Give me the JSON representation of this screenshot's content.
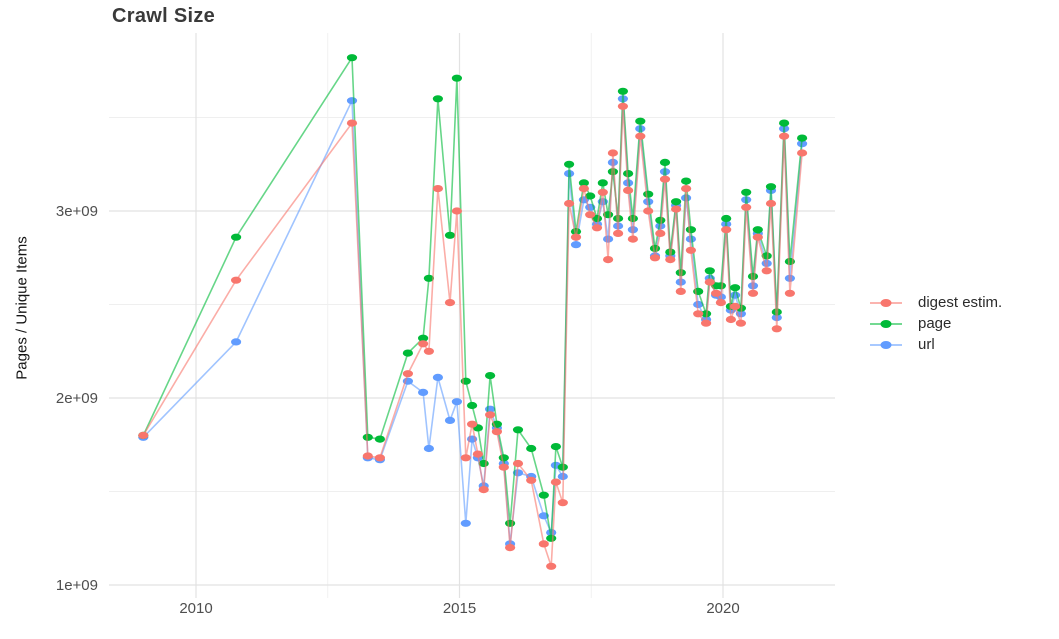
{
  "chart_data": {
    "type": "line",
    "title": "Crawl Size",
    "xlabel": "",
    "ylabel": "Pages / Unique Items",
    "values_unit": "billions (value 2.5 means 2.5e+09 pages / unique items)",
    "xlim": [
      2008.35,
      2022.1
    ],
    "ylim": [
      0.95,
      3.95
    ],
    "grid": {
      "on": true,
      "minor_x": [
        2012.5,
        2017.5
      ],
      "minor_y": [
        1.5,
        2.5,
        3.5
      ]
    },
    "x_ticks": [
      {
        "label": "2010",
        "x": 2010
      },
      {
        "label": "2015",
        "x": 2015
      },
      {
        "label": "2020",
        "x": 2020
      }
    ],
    "y_ticks": [
      {
        "label": "1e+09",
        "v": 1.0
      },
      {
        "label": "2e+09",
        "v": 2.0
      },
      {
        "label": "3e+09",
        "v": 3.0
      }
    ],
    "legend": {
      "position": "right",
      "entries": [
        "digest estim.",
        "page",
        "url"
      ]
    },
    "x": [
      2009.0,
      2010.76,
      2012.96,
      2013.26,
      2013.49,
      2014.02,
      2014.31,
      2014.42,
      2014.59,
      2014.82,
      2014.95,
      2015.12,
      2015.24,
      2015.35,
      2015.46,
      2015.58,
      2015.71,
      2015.84,
      2015.96,
      2016.11,
      2016.36,
      2016.6,
      2016.74,
      2016.83,
      2016.96,
      2017.08,
      2017.21,
      2017.36,
      2017.48,
      2017.61,
      2017.72,
      2017.82,
      2017.91,
      2018.01,
      2018.1,
      2018.2,
      2018.29,
      2018.43,
      2018.58,
      2018.71,
      2018.81,
      2018.9,
      2019.0,
      2019.11,
      2019.2,
      2019.3,
      2019.39,
      2019.53,
      2019.68,
      2019.75,
      2019.87,
      2019.96,
      2020.06,
      2020.15,
      2020.23,
      2020.34,
      2020.44,
      2020.57,
      2020.66,
      2020.83,
      2020.91,
      2021.02,
      2021.16,
      2021.27,
      2021.5
    ],
    "series": [
      {
        "name": "digest estim.",
        "color": "#F8766D",
        "values": [
          1.8,
          2.63,
          3.47,
          1.69,
          1.68,
          2.13,
          2.29,
          2.25,
          3.12,
          2.51,
          3.0,
          1.68,
          1.86,
          1.7,
          1.51,
          1.91,
          1.82,
          1.63,
          1.2,
          1.65,
          1.56,
          1.22,
          1.1,
          1.55,
          1.44,
          3.04,
          2.86,
          3.12,
          2.98,
          2.91,
          3.1,
          2.74,
          3.31,
          2.88,
          3.56,
          3.11,
          2.85,
          3.4,
          3.0,
          2.75,
          2.88,
          3.17,
          2.74,
          3.01,
          2.57,
          3.12,
          2.79,
          2.45,
          2.4,
          2.62,
          2.56,
          2.51,
          2.9,
          2.42,
          2.49,
          2.4,
          3.02,
          2.56,
          2.86,
          2.68,
          3.04,
          2.37,
          3.4,
          2.56,
          3.31
        ]
      },
      {
        "name": "page",
        "color": "#00BA38",
        "values": [
          1.8,
          2.86,
          3.82,
          1.79,
          1.78,
          2.24,
          2.32,
          2.64,
          3.6,
          2.87,
          3.71,
          2.09,
          1.96,
          1.84,
          1.65,
          2.12,
          1.86,
          1.68,
          1.33,
          1.83,
          1.73,
          1.48,
          1.25,
          1.74,
          1.63,
          3.25,
          2.89,
          3.15,
          3.08,
          2.96,
          3.15,
          2.98,
          3.21,
          2.96,
          3.64,
          3.2,
          2.96,
          3.48,
          3.09,
          2.8,
          2.95,
          3.26,
          2.78,
          3.05,
          2.67,
          3.16,
          2.9,
          2.57,
          2.45,
          2.68,
          2.6,
          2.6,
          2.96,
          2.49,
          2.59,
          2.48,
          3.1,
          2.65,
          2.9,
          2.76,
          3.13,
          2.46,
          3.47,
          2.73,
          3.39
        ]
      },
      {
        "name": "url",
        "color": "#619CFF",
        "values": [
          1.79,
          2.3,
          3.59,
          1.68,
          1.67,
          2.09,
          2.03,
          1.73,
          2.11,
          1.88,
          1.98,
          1.33,
          1.78,
          1.68,
          1.53,
          1.94,
          1.84,
          1.65,
          1.22,
          1.6,
          1.58,
          1.37,
          1.28,
          1.64,
          1.58,
          3.2,
          2.82,
          3.06,
          3.02,
          2.93,
          3.05,
          2.85,
          3.26,
          2.92,
          3.6,
          3.15,
          2.9,
          3.44,
          3.05,
          2.76,
          2.92,
          3.21,
          2.76,
          3.03,
          2.62,
          3.07,
          2.85,
          2.5,
          2.42,
          2.64,
          2.55,
          2.54,
          2.93,
          2.47,
          2.55,
          2.45,
          3.06,
          2.6,
          2.88,
          2.72,
          3.11,
          2.43,
          3.44,
          2.64,
          3.36
        ]
      }
    ]
  }
}
